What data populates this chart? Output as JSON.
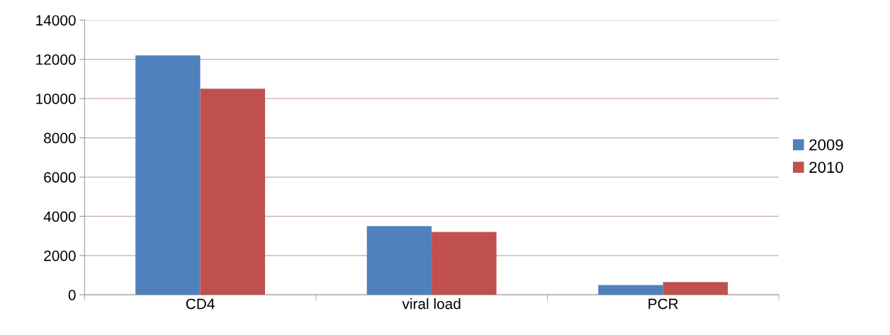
{
  "chart_data": {
    "type": "bar",
    "categories": [
      "CD4",
      "viral load",
      "PCR"
    ],
    "series": [
      {
        "name": "2009",
        "color": "#4f81bd",
        "values": [
          12200,
          3500,
          500
        ]
      },
      {
        "name": "2010",
        "color": "#c0504d",
        "values": [
          10500,
          3200,
          650
        ]
      }
    ],
    "ylim": [
      0,
      14000
    ],
    "yticks": [
      0,
      2000,
      4000,
      6000,
      8000,
      10000,
      12000,
      14000
    ],
    "grid": "y",
    "legend": "right"
  }
}
